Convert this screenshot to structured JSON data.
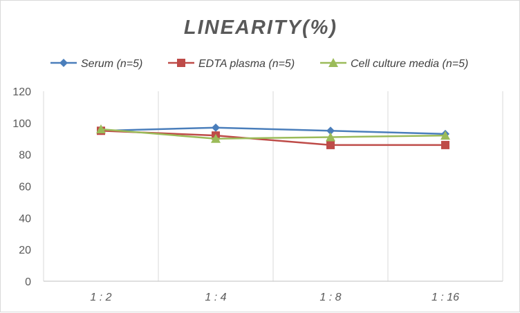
{
  "chart_data": {
    "type": "line",
    "title": "LINEARITY(%)",
    "categories": [
      "1:2",
      "1:4",
      "1:8",
      "1:16"
    ],
    "ylim": [
      0,
      120
    ],
    "yticks": [
      0,
      20,
      40,
      60,
      80,
      100,
      120
    ],
    "grid": "vertical",
    "legend_position": "top",
    "series": [
      {
        "name": "Serum (n=5)",
        "values": [
          95,
          97,
          95,
          93
        ],
        "color": "#4a7ebb",
        "marker": "diamond"
      },
      {
        "name": "EDTA plasma (n=5)",
        "values": [
          95,
          92,
          86,
          86
        ],
        "color": "#be4b48",
        "marker": "square"
      },
      {
        "name": "Cell culture media (n=5)",
        "values": [
          96,
          90,
          91,
          92
        ],
        "color": "#9bbb59",
        "marker": "triangle"
      }
    ]
  }
}
